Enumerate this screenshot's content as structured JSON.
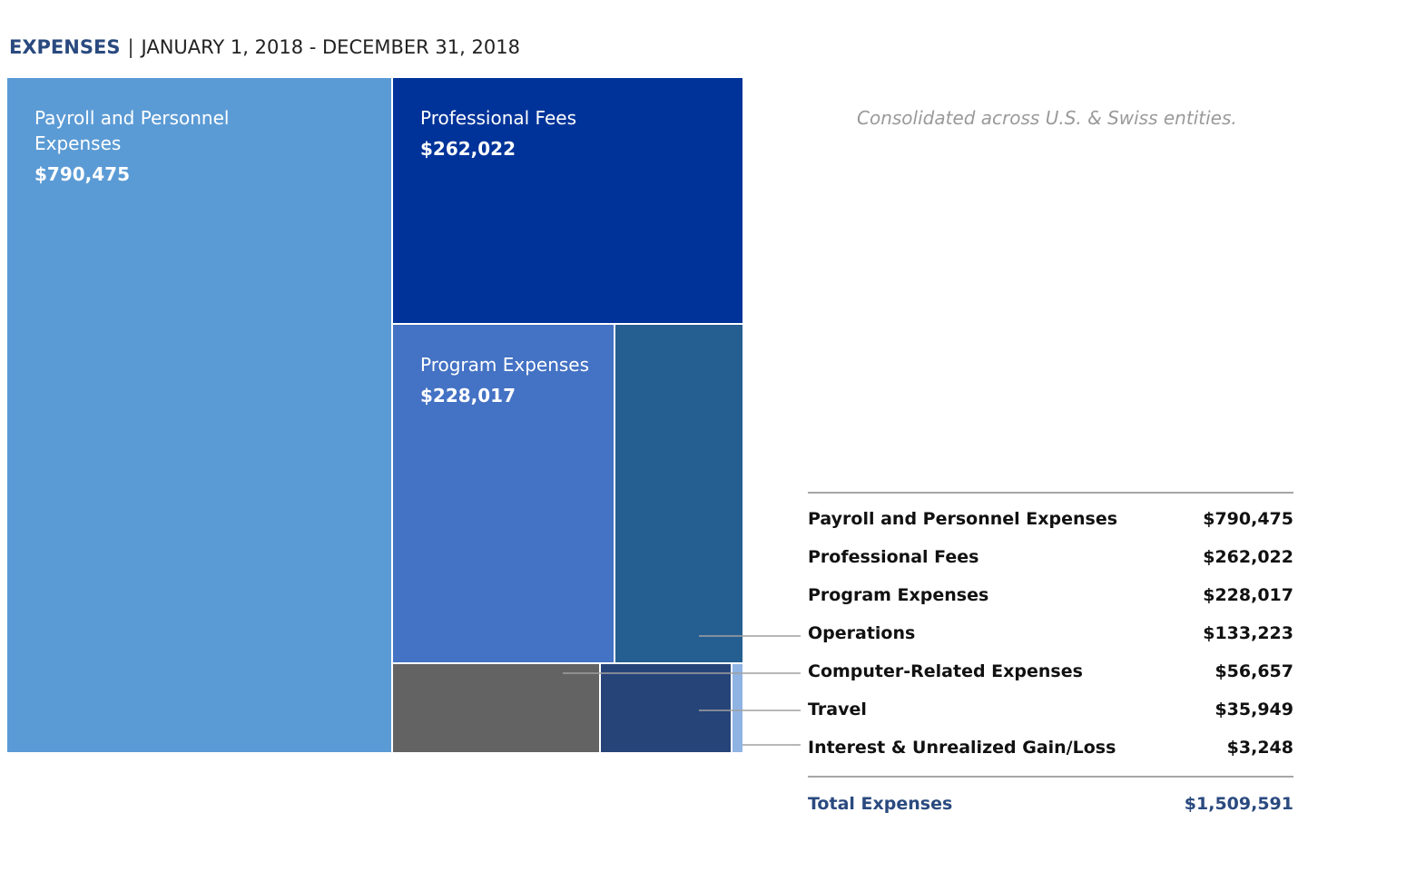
{
  "header": {
    "title_bold": "EXPENSES",
    "separator": "|",
    "title_rest": "JANUARY 1, 2018 - DECEMBER 31, 2018"
  },
  "note": "Consolidated across U.S. & Swiss entities.",
  "chart_data": {
    "type": "treemap",
    "title": "EXPENSES | JANUARY 1, 2018 - DECEMBER 31, 2018",
    "categories": [
      "Payroll and Personnel Expenses",
      "Professional Fees",
      "Program Expenses",
      "Operations",
      "Computer-Related Expenses",
      "Travel",
      "Interest & Unrealized Gain/Loss"
    ],
    "values": [
      790475,
      262022,
      228017,
      133223,
      56657,
      35949,
      3248
    ],
    "tile_labels": [
      {
        "label": "Payroll and Personnel Expenses",
        "value": "$790,475"
      },
      {
        "label": "Professional Fees",
        "value": "$262,022"
      },
      {
        "label": "Program Expenses",
        "value": "$228,017"
      }
    ],
    "colors": [
      "#5b9bd5",
      "#003399",
      "#4472c4",
      "#255e91",
      "#636363",
      "#264478",
      "#8fb4e3"
    ]
  },
  "table": {
    "rows": [
      {
        "name": "Payroll and Personnel Expenses",
        "value": "$790,475"
      },
      {
        "name": "Professional Fees",
        "value": "$262,022"
      },
      {
        "name": "Program Expenses",
        "value": "$228,017"
      },
      {
        "name": "Operations",
        "value": "$133,223"
      },
      {
        "name": "Computer-Related Expenses",
        "value": "$56,657"
      },
      {
        "name": "Travel",
        "value": "$35,949"
      },
      {
        "name": "Interest & Unrealized Gain/Loss",
        "value": "$3,248"
      }
    ],
    "total": {
      "name": "Total Expenses",
      "value": "$1,509,591"
    }
  }
}
